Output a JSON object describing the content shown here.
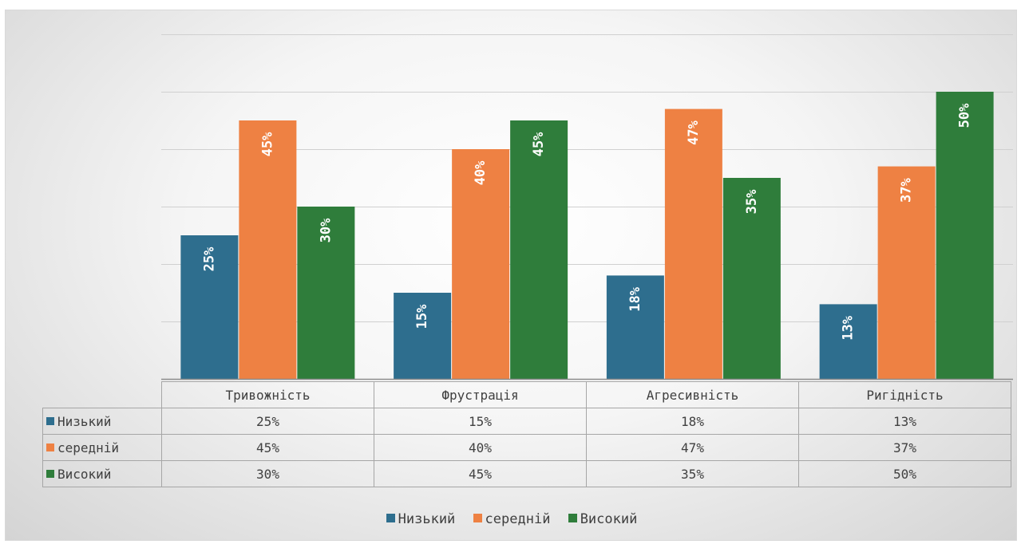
{
  "chart_data": {
    "type": "bar",
    "categories": [
      "Тривожність",
      "Фрустрація",
      "Агресивність",
      "Ригідність"
    ],
    "series": [
      {
        "name": "Низький",
        "color": "#2e6e8e",
        "values": [
          25,
          15,
          18,
          13
        ],
        "labels": [
          "25%",
          "15%",
          "18%",
          "13%"
        ]
      },
      {
        "name": "середній",
        "color": "#ee8143",
        "values": [
          45,
          40,
          47,
          37
        ],
        "labels": [
          "45%",
          "40%",
          "47%",
          "37%"
        ]
      },
      {
        "name": "Високий",
        "color": "#2f7d3b",
        "values": [
          30,
          45,
          35,
          50
        ],
        "labels": [
          "30%",
          "45%",
          "35%",
          "50%"
        ]
      }
    ],
    "ylim": [
      0,
      60
    ],
    "ytick_step": 10,
    "grid": true,
    "data_labels": "inside-rotated",
    "data_table": true,
    "legend": "bottom"
  }
}
